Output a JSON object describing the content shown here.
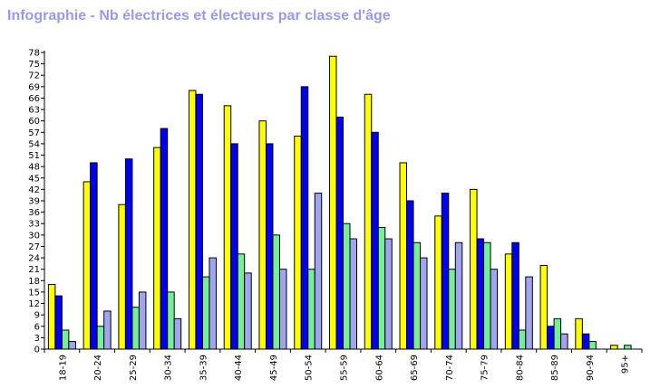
{
  "chart_data": {
    "type": "bar",
    "title": "Infographie - Nb électrices et électeurs par classe d'âge",
    "xlabel": "",
    "ylabel": "",
    "ylim": [
      0,
      78
    ],
    "yticks": [
      0,
      3,
      6,
      9,
      12,
      15,
      18,
      21,
      24,
      27,
      30,
      33,
      36,
      39,
      42,
      45,
      48,
      51,
      54,
      57,
      60,
      63,
      66,
      69,
      72,
      75,
      78
    ],
    "grid": false,
    "legend": "none",
    "categories": [
      "18-19",
      "20-24",
      "25-29",
      "30-34",
      "35-39",
      "40-44",
      "45-49",
      "50-54",
      "55-59",
      "60-64",
      "65-69",
      "70-74",
      "75-79",
      "80-84",
      "85-89",
      "90-94",
      "95+"
    ],
    "series": [
      {
        "color": "#ffff00",
        "values": [
          17,
          44,
          38,
          53,
          68,
          64,
          60,
          56,
          77,
          67,
          49,
          35,
          42,
          25,
          22,
          8,
          1
        ]
      },
      {
        "color": "#0000ee",
        "values": [
          14,
          49,
          50,
          58,
          67,
          54,
          54,
          69,
          61,
          57,
          39,
          41,
          29,
          28,
          6,
          4,
          0
        ]
      },
      {
        "color": "#77ee99",
        "values": [
          5,
          6,
          11,
          15,
          19,
          25,
          30,
          21,
          33,
          32,
          28,
          21,
          28,
          5,
          8,
          2,
          1
        ]
      },
      {
        "color": "#9fa6ee",
        "values": [
          2,
          10,
          15,
          8,
          24,
          20,
          21,
          41,
          29,
          29,
          24,
          28,
          21,
          19,
          4,
          0,
          0
        ]
      }
    ]
  }
}
